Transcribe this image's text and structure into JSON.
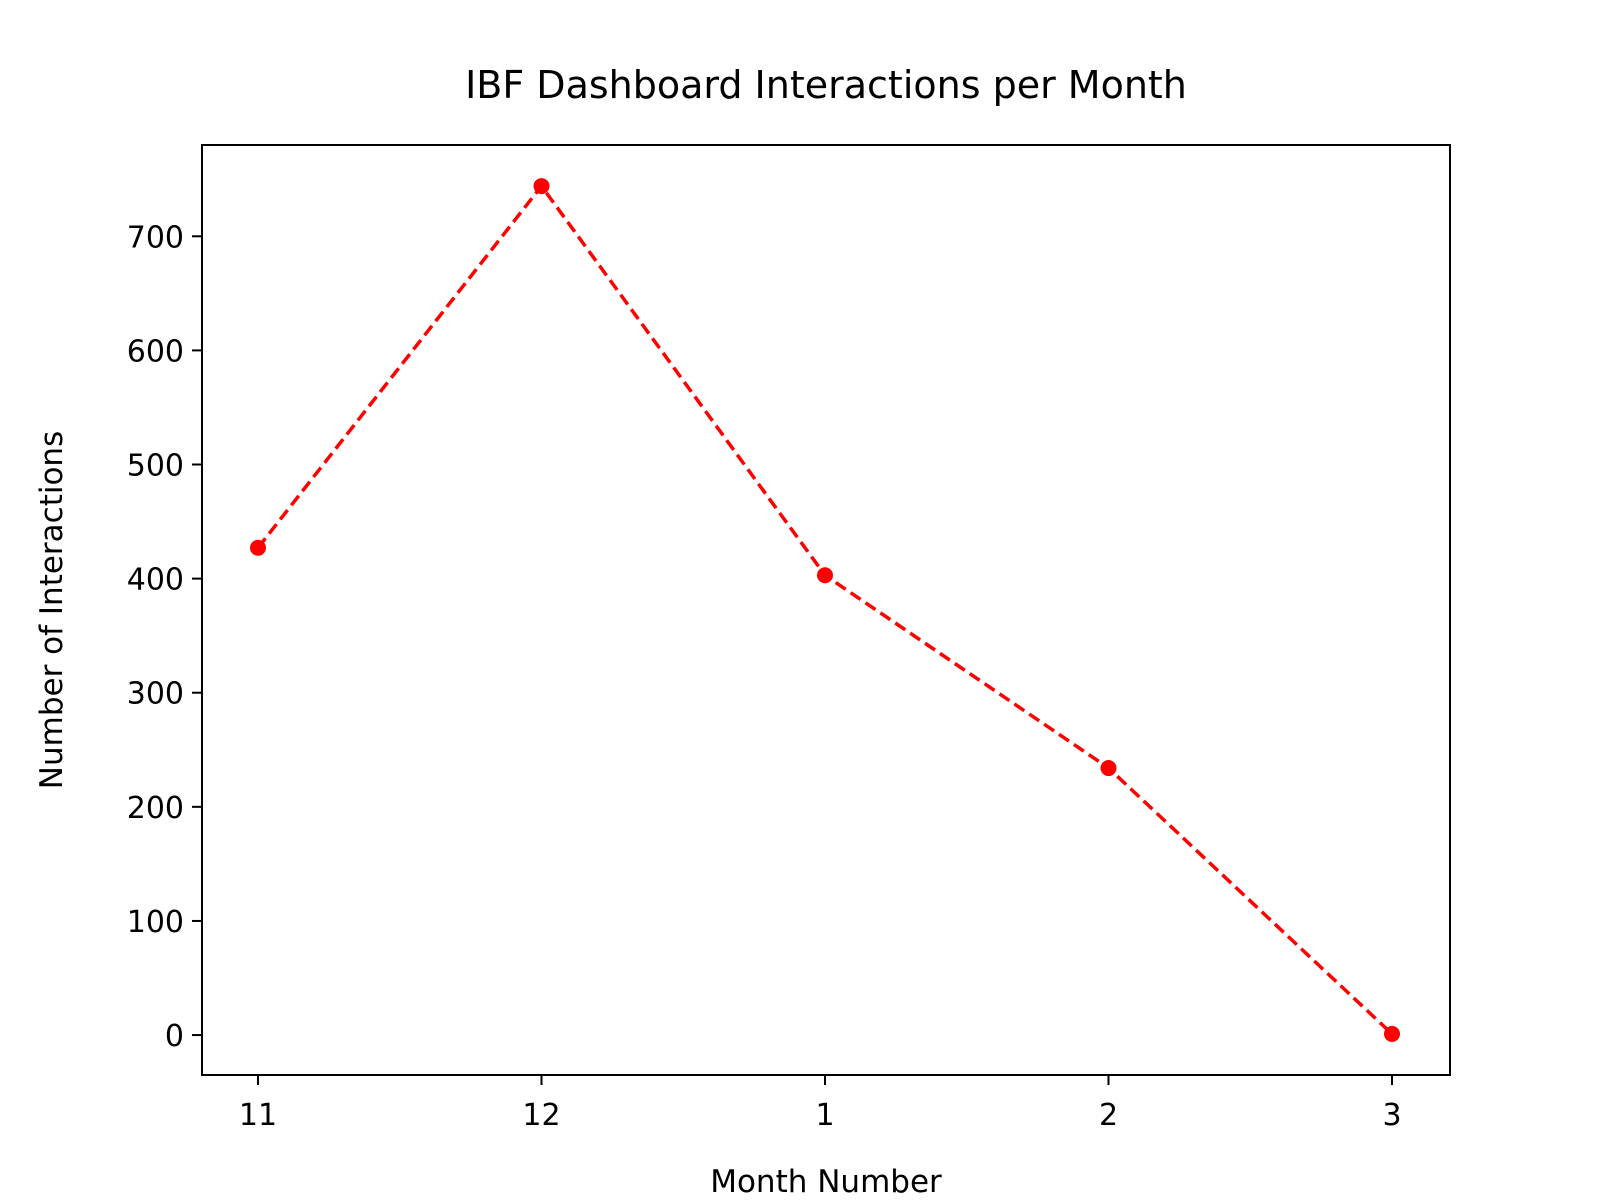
{
  "chart_data": {
    "type": "line",
    "title": "IBF Dashboard Interactions per Month",
    "xlabel": "Month Number",
    "ylabel": "Number of Interactions",
    "categories": [
      "11",
      "12",
      "1",
      "2",
      "3"
    ],
    "series": [
      {
        "values": [
          427,
          744,
          403,
          234,
          1
        ],
        "color": "#ff0000",
        "line_style": "dashed",
        "marker": "circle"
      }
    ],
    "yticks": [
      0,
      100,
      200,
      300,
      400,
      500,
      600,
      700
    ],
    "ylim": [
      -35,
      780
    ],
    "grid": false,
    "legend": "none"
  }
}
